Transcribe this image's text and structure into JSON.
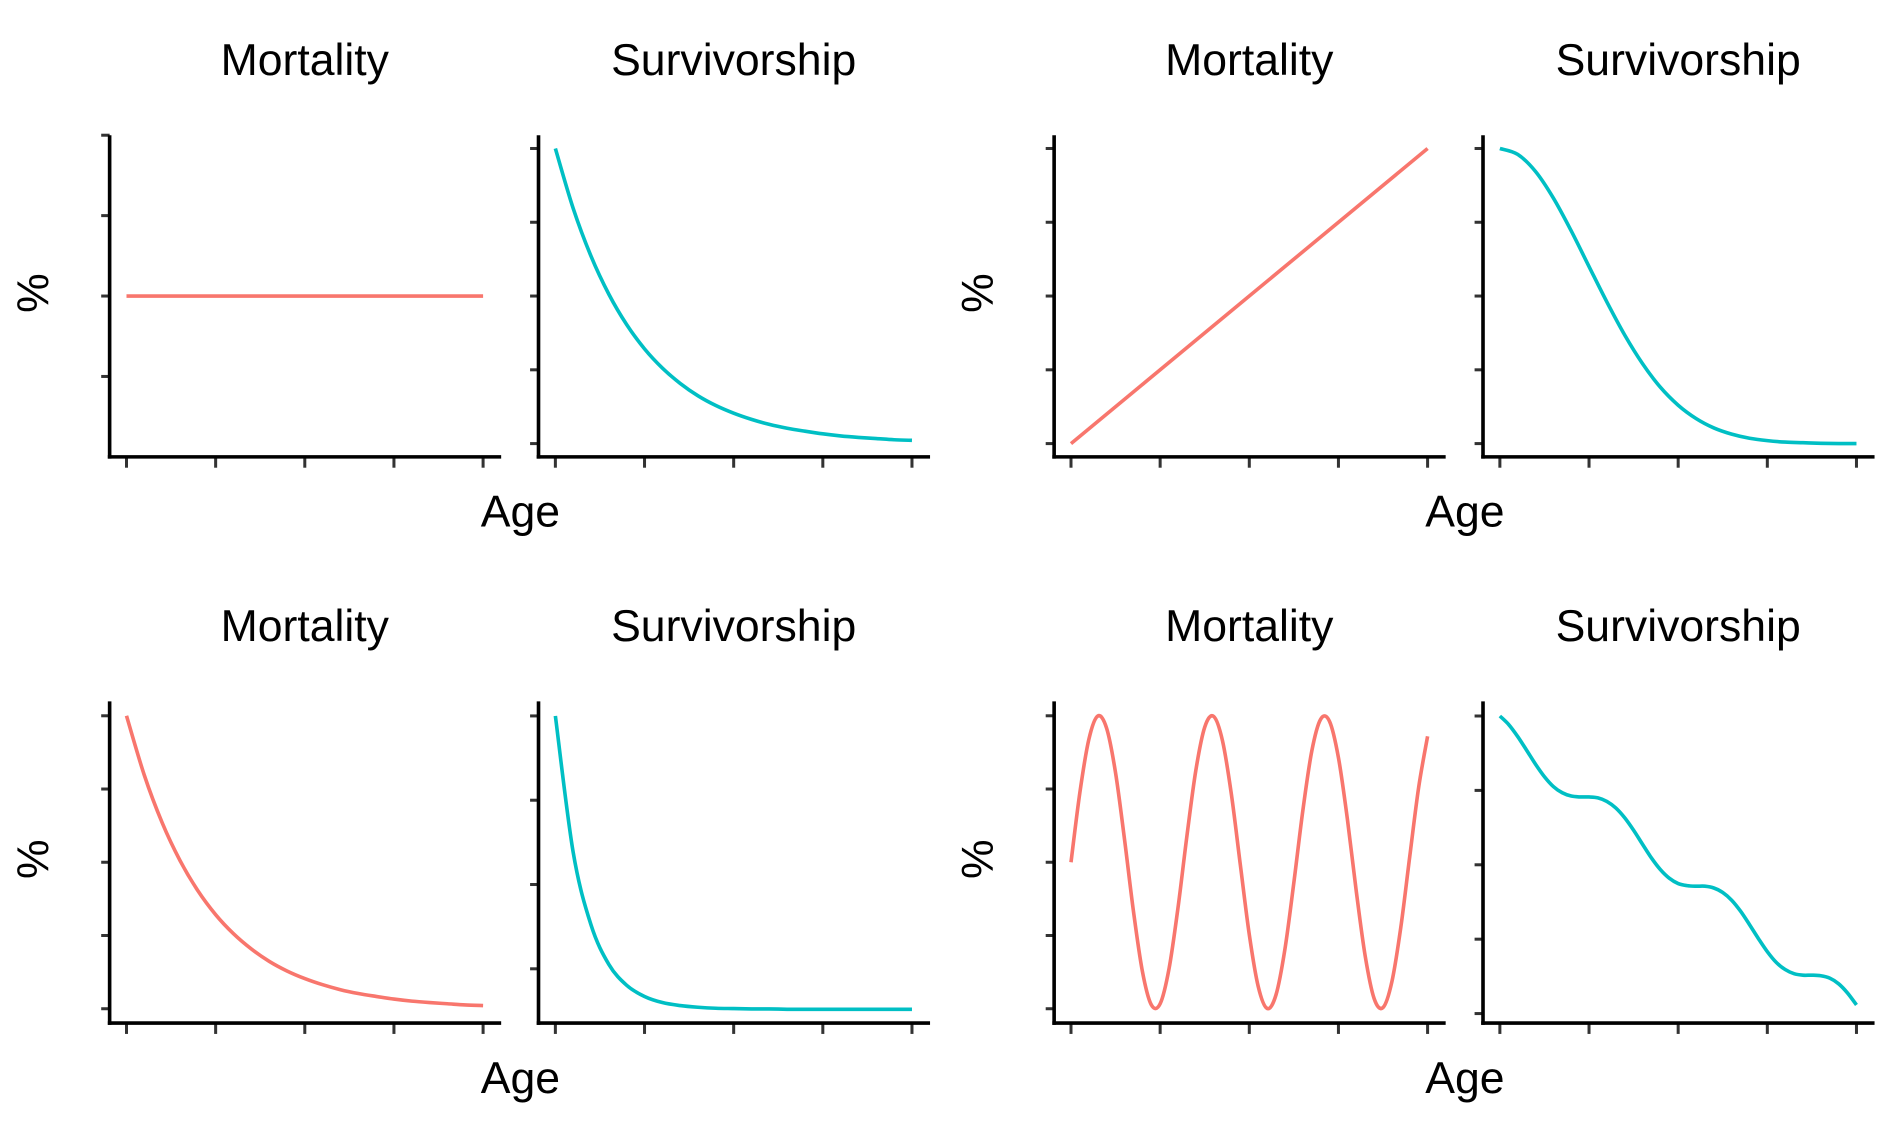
{
  "colors": {
    "mortality": "#F8766D",
    "survivorship": "#00BFC4",
    "axis": "#000000",
    "tick": "#333333"
  },
  "chart_data": [
    {
      "type": "line",
      "group": "top-left",
      "title": "Mortality",
      "xlabel": "Age",
      "ylabel": "%",
      "series_color": "#F8766D",
      "x": [
        0,
        100
      ],
      "y": [
        0.5,
        0.5
      ],
      "xlim": [
        0,
        100
      ],
      "xticks": [
        0,
        25,
        50,
        75,
        100
      ],
      "ylim": [
        0,
        1.0
      ],
      "yticks": [
        0.25,
        0.5,
        0.75,
        1.0
      ]
    },
    {
      "type": "line",
      "group": "top-left",
      "title": "Survivorship",
      "xlabel": "Age",
      "ylabel": "%",
      "series_color": "#00BFC4",
      "x": [
        0,
        5,
        10,
        15,
        20,
        25,
        30,
        35,
        40,
        45,
        50,
        55,
        60,
        65,
        70,
        75,
        80,
        85,
        90,
        95,
        100
      ],
      "y": [
        1,
        0.797,
        0.635,
        0.506,
        0.403,
        0.321,
        0.256,
        0.204,
        0.162,
        0.129,
        0.103,
        0.082,
        0.065,
        0.052,
        0.042,
        0.033,
        0.026,
        0.021,
        0.017,
        0.013,
        0.011
      ],
      "xlim": [
        0,
        100
      ],
      "xticks": [
        0,
        25,
        50,
        75,
        100
      ],
      "ylim": [
        -0.045,
        1.045
      ],
      "yticks": [
        0,
        0.25,
        0.5,
        0.75,
        1.0
      ]
    },
    {
      "type": "line",
      "group": "top-right",
      "title": "Mortality",
      "xlabel": "Age",
      "ylabel": "%",
      "series_color": "#F8766D",
      "x": [
        0,
        100
      ],
      "y": [
        0,
        1
      ],
      "xlim": [
        0,
        100
      ],
      "xticks": [
        0,
        25,
        50,
        75,
        100
      ],
      "ylim": [
        -0.045,
        1.045
      ],
      "yticks": [
        0,
        0.25,
        0.5,
        0.75,
        1.0
      ]
    },
    {
      "type": "line",
      "group": "top-right",
      "title": "Survivorship",
      "xlabel": "Age",
      "ylabel": "%",
      "series_color": "#00BFC4",
      "x": [
        0,
        5,
        10,
        15,
        20,
        25,
        30,
        35,
        40,
        45,
        50,
        55,
        60,
        65,
        70,
        75,
        80,
        85,
        90,
        95,
        100
      ],
      "y": [
        1,
        0.98,
        0.922,
        0.832,
        0.721,
        0.6,
        0.48,
        0.368,
        0.271,
        0.191,
        0.13,
        0.085,
        0.053,
        0.032,
        0.018,
        0.01,
        0.005,
        0.003,
        0.001,
        0,
        0
      ],
      "xlim": [
        0,
        100
      ],
      "xticks": [
        0,
        25,
        50,
        75,
        100
      ],
      "ylim": [
        -0.045,
        1.045
      ],
      "yticks": [
        0,
        0.25,
        0.5,
        0.75,
        1.0
      ]
    },
    {
      "type": "line",
      "group": "bottom-left",
      "title": "Mortality",
      "xlabel": "Age",
      "ylabel": "%",
      "series_color": "#F8766D",
      "x": [
        0,
        5,
        10,
        15,
        20,
        25,
        30,
        35,
        40,
        45,
        50,
        55,
        60,
        65,
        70,
        75,
        80,
        85,
        90,
        95,
        100
      ],
      "y": [
        1,
        0.797,
        0.635,
        0.506,
        0.403,
        0.321,
        0.256,
        0.204,
        0.162,
        0.129,
        0.103,
        0.082,
        0.065,
        0.052,
        0.042,
        0.033,
        0.026,
        0.021,
        0.017,
        0.013,
        0.011
      ],
      "xlim": [
        0,
        100
      ],
      "xticks": [
        0,
        25,
        50,
        75,
        100
      ],
      "ylim": [
        -0.049,
        1.049
      ],
      "yticks": [
        0,
        0.25,
        0.5,
        0.75,
        1.0
      ]
    },
    {
      "type": "line",
      "group": "bottom-left",
      "title": "Survivorship",
      "xlabel": "Age",
      "ylabel": "%",
      "series_color": "#00BFC4",
      "x": [
        0,
        5,
        10,
        15,
        20,
        25,
        30,
        35,
        40,
        45,
        50,
        55,
        60,
        65,
        70,
        75,
        80,
        85,
        90,
        95,
        100
      ],
      "y": [
        1,
        0.595,
        0.38,
        0.263,
        0.201,
        0.168,
        0.15,
        0.141,
        0.136,
        0.133,
        0.132,
        0.131,
        0.131,
        0.13,
        0.13,
        0.13,
        0.13,
        0.13,
        0.13,
        0.13,
        0.13
      ],
      "xlim": [
        0,
        100
      ],
      "xticks": [
        0,
        25,
        50,
        75,
        100
      ],
      "ylim": [
        0.089,
        1.043
      ],
      "yticks": [
        0.25,
        0.5,
        0.75,
        1.0
      ]
    },
    {
      "type": "line",
      "group": "bottom-right",
      "title": "Mortality",
      "xlabel": "Age",
      "ylabel": "%",
      "series_color": "#F8766D",
      "x": [
        0,
        2.5,
        5,
        7.5,
        10,
        12.5,
        15,
        17.5,
        20,
        22.5,
        25,
        27.5,
        30,
        32.5,
        35,
        37.5,
        40,
        42.5,
        45,
        47.5,
        50,
        52.5,
        55,
        57.5,
        60,
        62.5,
        65,
        67.5,
        70,
        72.5,
        75,
        77.5,
        80,
        82.5,
        85,
        87.5,
        90,
        92.5,
        95,
        97.5,
        100
      ],
      "y": [
        0.5,
        0.739,
        0.919,
        0.999,
        0.957,
        0.805,
        0.579,
        0.334,
        0.129,
        0.014,
        0.017,
        0.137,
        0.344,
        0.589,
        0.813,
        0.961,
        0.998,
        0.914,
        0.73,
        0.49,
        0.253,
        0.076,
        0.001,
        0.048,
        0.204,
        0.431,
        0.675,
        0.878,
        0.988,
        0.981,
        0.857,
        0.648,
        0.401,
        0.18,
        0.035,
        0.004,
        0.093,
        0.279,
        0.52,
        0.756,
        0.93
      ],
      "xlim": [
        0,
        100
      ],
      "xticks": [
        0,
        25,
        50,
        75,
        100
      ],
      "ylim": [
        -0.049,
        1.049
      ],
      "yticks": [
        0,
        0.25,
        0.5,
        0.75,
        1.0
      ]
    },
    {
      "type": "line",
      "group": "bottom-right",
      "title": "Survivorship",
      "xlabel": "Age",
      "ylabel": "%",
      "series_color": "#00BFC4",
      "x": [
        0,
        2.5,
        5,
        7.5,
        10,
        12.5,
        15,
        17.5,
        20,
        22.5,
        25,
        27.5,
        30,
        32.5,
        35,
        37.5,
        40,
        42.5,
        45,
        47.5,
        50,
        52.5,
        55,
        57.5,
        60,
        62.5,
        65,
        67.5,
        70,
        72.5,
        75,
        77.5,
        80,
        82.5,
        85,
        87.5,
        90,
        92.5,
        95,
        97.5,
        100
      ],
      "y": [
        1,
        0.971,
        0.931,
        0.885,
        0.838,
        0.796,
        0.763,
        0.742,
        0.731,
        0.728,
        0.728,
        0.725,
        0.713,
        0.691,
        0.658,
        0.616,
        0.569,
        0.523,
        0.484,
        0.455,
        0.437,
        0.43,
        0.428,
        0.428,
        0.422,
        0.407,
        0.381,
        0.344,
        0.299,
        0.252,
        0.208,
        0.172,
        0.148,
        0.134,
        0.129,
        0.129,
        0.127,
        0.119,
        0.1,
        0.069,
        0.029
      ],
      "xlim": [
        0,
        100
      ],
      "xticks": [
        0,
        25,
        50,
        75,
        100
      ],
      "ylim": [
        -0.032,
        1.049
      ],
      "yticks": [
        0,
        0.25,
        0.5,
        0.75,
        1.0
      ]
    }
  ],
  "labels": {
    "x_axis": "Age",
    "y_axis": "%"
  }
}
